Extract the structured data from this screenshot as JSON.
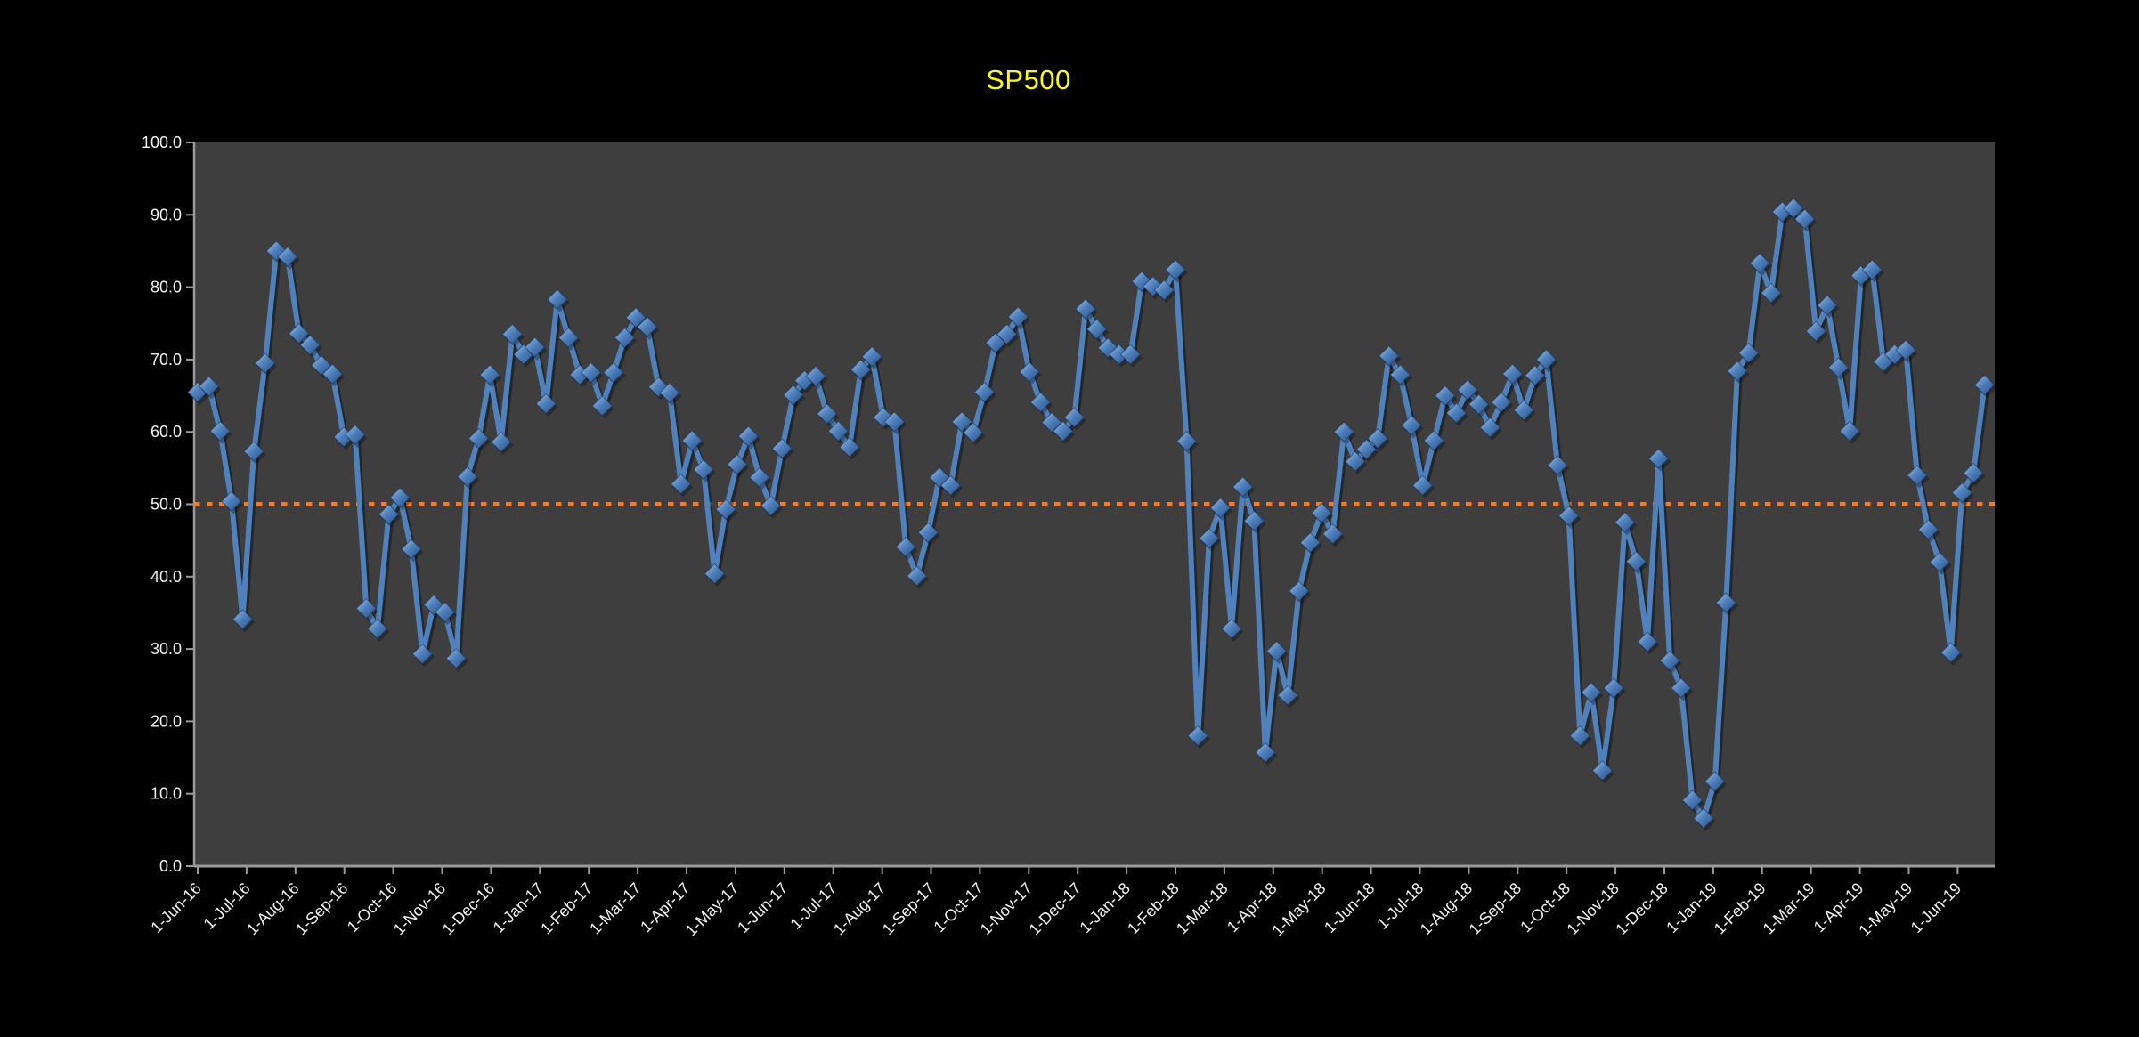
{
  "chart_data": {
    "type": "line",
    "title": "SP500",
    "title_color": "#FFFF00",
    "background_color": "#000000",
    "plot_background_color": "#3E3E3E",
    "axis_color": "#9B9B9B",
    "axis_label_color": "#F2F2F2",
    "line_color": "#4F81BD",
    "marker_shape": "diamond-3d",
    "legend": "none",
    "grid": "off",
    "ylim": [
      0,
      100
    ],
    "y_tick_step": 10,
    "y_tick_labels": [
      "0.0",
      "10.0",
      "20.0",
      "30.0",
      "40.0",
      "50.0",
      "60.0",
      "70.0",
      "80.0",
      "90.0",
      "100.0"
    ],
    "x_tick_labels": [
      "1-Jun-16",
      "1-Jul-16",
      "1-Aug-16",
      "1-Sep-16",
      "1-Oct-16",
      "1-Nov-16",
      "1-Dec-16",
      "1-Jan-17",
      "1-Feb-17",
      "1-Mar-17",
      "1-Apr-17",
      "1-May-17",
      "1-Jun-17",
      "1-Jul-17",
      "1-Aug-17",
      "1-Sep-17",
      "1-Oct-17",
      "1-Nov-17",
      "1-Dec-17",
      "1-Jan-18",
      "1-Feb-18",
      "1-Mar-18",
      "1-Apr-18",
      "1-May-18",
      "1-Jun-18",
      "1-Jul-18",
      "1-Aug-18",
      "1-Sep-18",
      "1-Oct-18",
      "1-Nov-18",
      "1-Dec-18",
      "1-Jan-19",
      "1-Feb-19",
      "1-Mar-19",
      "1-Apr-19",
      "1-May-19",
      "1-Jun-19"
    ],
    "x_interval": "weekly",
    "reference_line": {
      "value": 50.0,
      "color": "#ED7D31",
      "style": "dotted"
    },
    "values": [
      65.5,
      66.3,
      60.1,
      50.4,
      34.1,
      57.3,
      69.5,
      85.0,
      84.2,
      73.6,
      72.0,
      69.2,
      68.0,
      59.3,
      59.6,
      35.6,
      32.8,
      48.6,
      50.9,
      43.8,
      29.3,
      36.1,
      35.1,
      28.7,
      53.8,
      59.1,
      67.9,
      58.6,
      73.5,
      70.7,
      71.7,
      63.9,
      78.3,
      73.0,
      67.9,
      68.2,
      63.6,
      68.2,
      73.0,
      75.8,
      74.5,
      66.2,
      65.4,
      52.8,
      58.8,
      54.8,
      40.4,
      49.3,
      55.5,
      59.4,
      53.7,
      49.8,
      57.7,
      65.1,
      67.1,
      67.7,
      62.5,
      60.1,
      57.9,
      68.6,
      70.4,
      62.0,
      61.4,
      44.1,
      40.1,
      46.1,
      53.7,
      52.6,
      61.4,
      59.9,
      65.5,
      72.3,
      73.5,
      75.9,
      68.3,
      64.1,
      61.3,
      60.1,
      62.0,
      77.0,
      74.2,
      71.6,
      70.7,
      70.7,
      80.8,
      80.1,
      79.6,
      82.4,
      58.7,
      18.0,
      45.3,
      49.5,
      32.8,
      52.4,
      47.7,
      15.7,
      29.7,
      23.6,
      38.0,
      44.7,
      48.8,
      45.9,
      60.0,
      55.9,
      57.6,
      59.1,
      70.5,
      67.9,
      60.9,
      52.6,
      58.8,
      65.0,
      62.6,
      65.8,
      63.8,
      60.6,
      64.1,
      68.0,
      63.0,
      67.8,
      70.0,
      55.4,
      48.4,
      18.0,
      24.0,
      13.2,
      24.6,
      47.5,
      42.1,
      31.0,
      56.3,
      28.4,
      24.6,
      9.1,
      6.6,
      11.7,
      36.4,
      68.4,
      70.9,
      83.3,
      79.2,
      90.4,
      90.9,
      89.4,
      73.9,
      77.5,
      68.9,
      60.1,
      81.6,
      82.4,
      69.7,
      70.7,
      71.3,
      54.0,
      46.5,
      42.0,
      29.5,
      51.6,
      54.3,
      66.5
    ]
  }
}
